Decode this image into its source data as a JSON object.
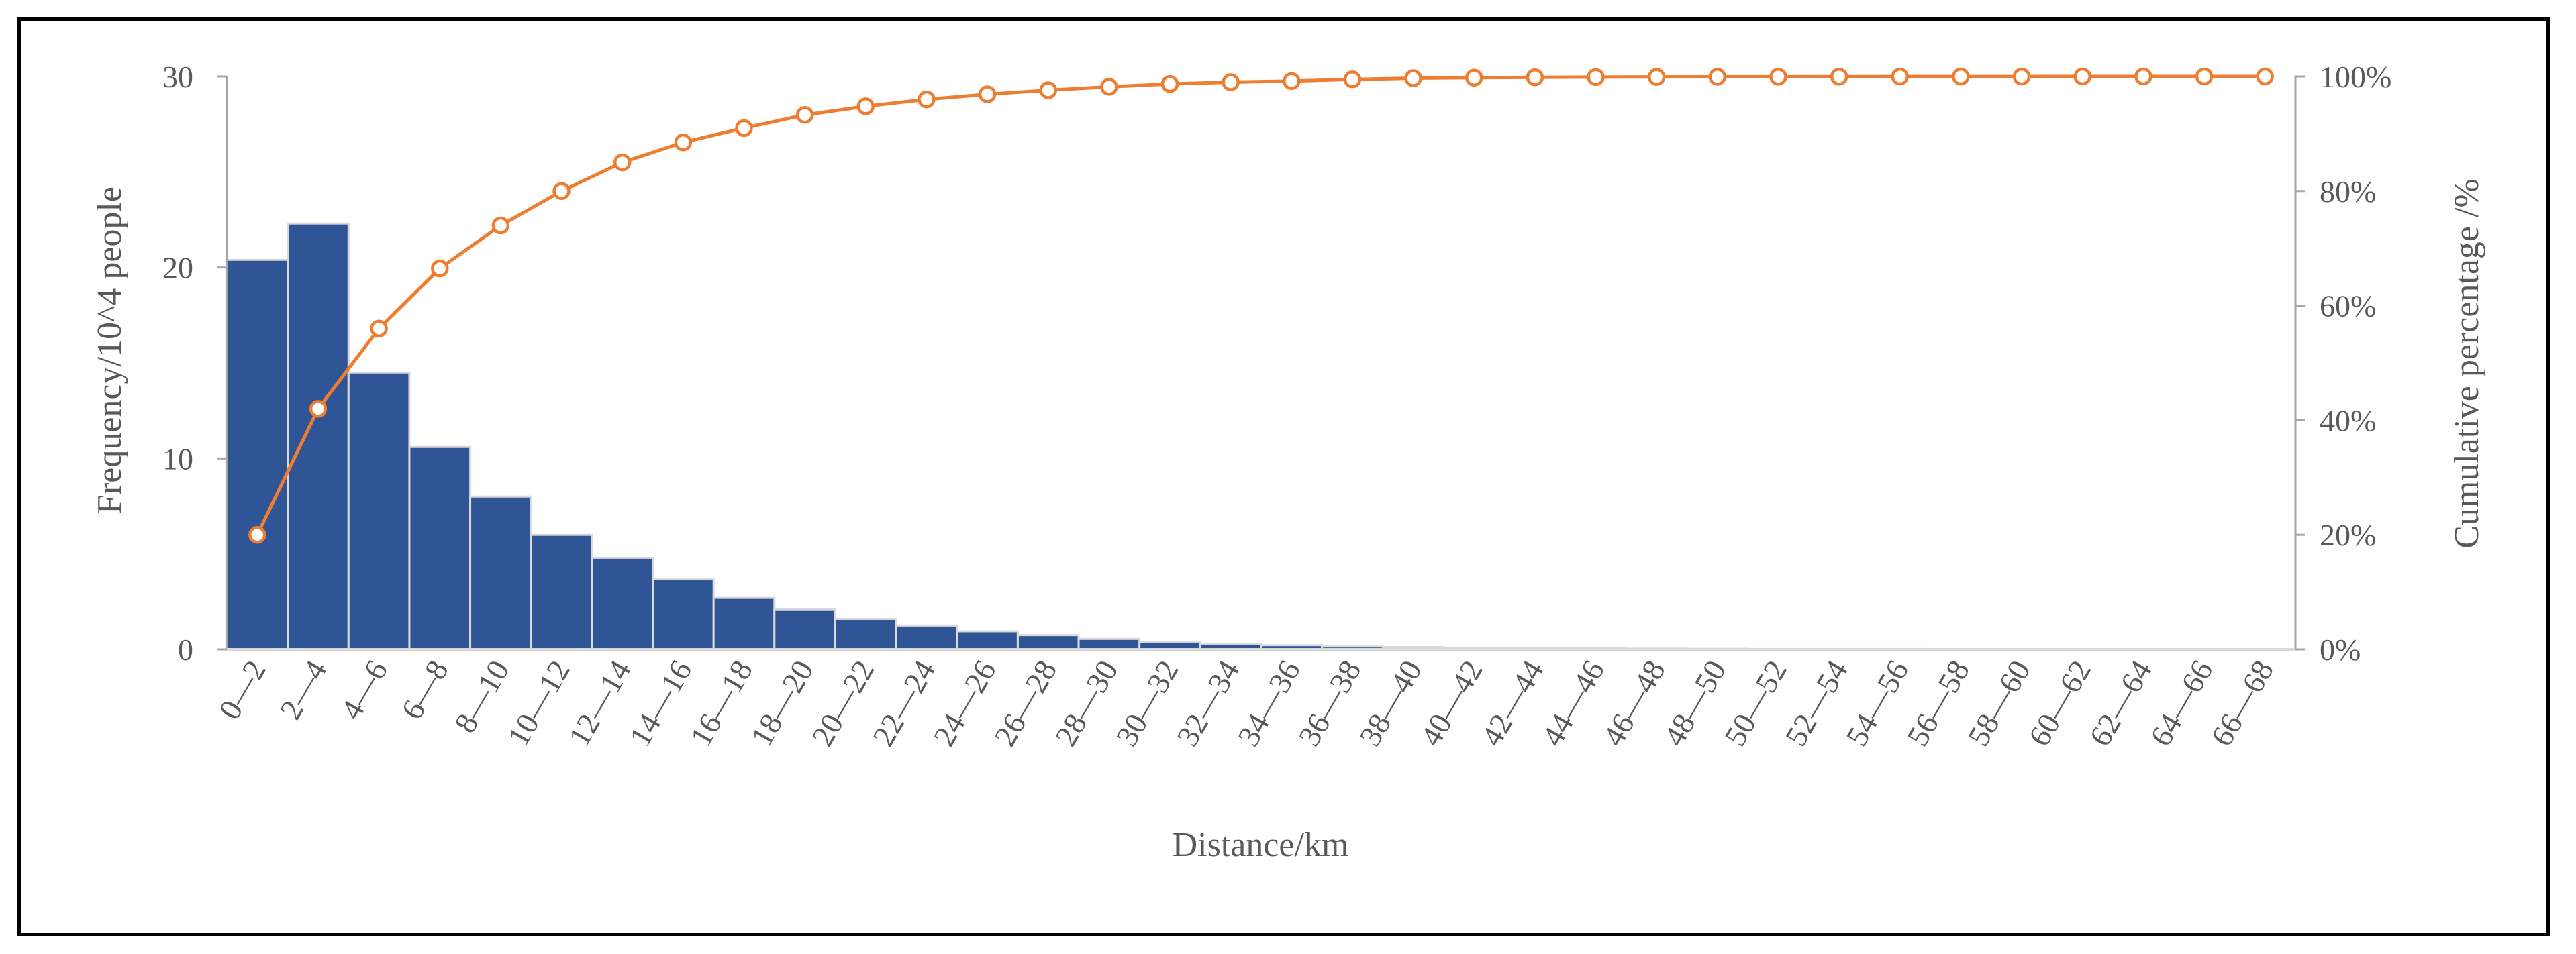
{
  "chart_data": {
    "type": "bar",
    "title": "",
    "xlabel": "Distance/km",
    "ylabel": "Frequency/10^4 people",
    "y2label": "Cumulative percentage /%",
    "ylim": [
      0,
      30
    ],
    "y2lim": [
      0,
      100
    ],
    "yticks": [
      "0",
      "10",
      "20",
      "30"
    ],
    "y2ticks": [
      "0%",
      "20%",
      "40%",
      "60%",
      "80%",
      "100%"
    ],
    "grid": false,
    "legend": "none",
    "categories": [
      "0—2",
      "2—4",
      "4—6",
      "6—8",
      "8—10",
      "10—12",
      "12—14",
      "14—16",
      "16—18",
      "18—20",
      "20—22",
      "22—24",
      "24—26",
      "26—28",
      "28—30",
      "30—32",
      "32—34",
      "34—36",
      "36—38",
      "38—40",
      "40—42",
      "42—44",
      "44—46",
      "46—48",
      "48—50",
      "50—52",
      "52—54",
      "54—56",
      "56—58",
      "58—60",
      "60—62",
      "62—64",
      "64—66",
      "66—68"
    ],
    "series": [
      {
        "type": "bar",
        "axis": "left",
        "color": "#2F5597",
        "values": [
          20.4,
          22.3,
          14.5,
          10.6,
          8.0,
          6.0,
          4.8,
          3.7,
          2.7,
          2.1,
          1.6,
          1.25,
          0.95,
          0.75,
          0.55,
          0.4,
          0.3,
          0.22,
          0.15,
          0.12,
          0.08,
          0.06,
          0.05,
          0.04,
          0.03,
          0.02,
          0.02,
          0.02,
          0.01,
          0.01,
          0.01,
          0.01,
          0.01,
          0.01
        ]
      },
      {
        "type": "line",
        "axis": "right",
        "color": "#ED7D31",
        "values": [
          20,
          42,
          56,
          66.5,
          74,
          80,
          85,
          88.5,
          91,
          93.3,
          94.8,
          96,
          96.9,
          97.6,
          98.2,
          98.7,
          99,
          99.2,
          99.5,
          99.7,
          99.8,
          99.85,
          99.9,
          99.92,
          99.95,
          99.96,
          99.97,
          99.98,
          99.99,
          99.99,
          100,
          100,
          100,
          100
        ]
      }
    ]
  }
}
